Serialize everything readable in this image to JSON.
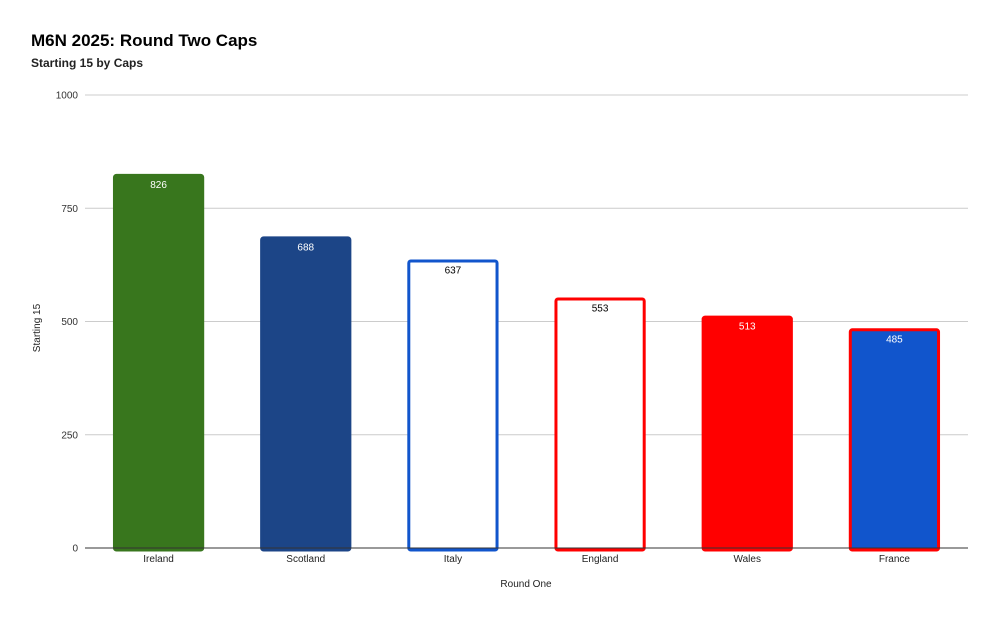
{
  "chart_data": {
    "type": "bar",
    "title": "M6N 2025: Round Two Caps",
    "subtitle": "Starting 15 by Caps",
    "xlabel": "Round One",
    "ylabel": "Starting 15",
    "ylim": [
      0,
      1000
    ],
    "yticks": [
      0,
      250,
      500,
      750,
      1000
    ],
    "grid": true,
    "categories": [
      "Ireland",
      "Scotland",
      "Italy",
      "England",
      "Wales",
      "France"
    ],
    "values": [
      826,
      688,
      637,
      553,
      513,
      485
    ],
    "fills": [
      "#38761d",
      "#1c4587",
      "#ffffff",
      "#ffffff",
      "#ff0000",
      "#1155cc"
    ],
    "strokes": [
      "#38761d",
      "#1c4587",
      "#1155cc",
      "#ff0000",
      "#ff0000",
      "#ff0000"
    ],
    "label_colors": [
      "#ffffff",
      "#ffffff",
      "#000000",
      "#000000",
      "#ffffff",
      "#ffffff"
    ]
  }
}
